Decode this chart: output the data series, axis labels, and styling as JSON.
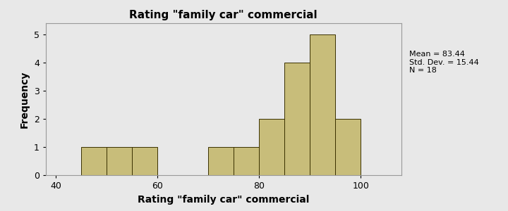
{
  "title": "Rating \"family car\" commercial",
  "xlabel": "Rating \"family car\" commercial",
  "ylabel": "Frequency",
  "bar_color": "#C8BD7A",
  "bar_edge_color": "#3A3000",
  "plot_bg_color": "#E8E8E8",
  "fig_bg_color": "#E8E8E8",
  "annotation": "Mean = 83.44\nStd. Dev. = 15.44\nN = 18",
  "xlim": [
    38,
    108
  ],
  "ylim": [
    0,
    5.4
  ],
  "yticks": [
    0,
    1,
    2,
    3,
    4,
    5
  ],
  "xticks": [
    40,
    60,
    80,
    100
  ],
  "bin_edges": [
    45,
    50,
    55,
    60,
    65,
    70,
    75,
    80,
    85,
    90,
    95,
    100,
    105
  ],
  "frequencies": [
    1,
    1,
    1,
    0,
    0,
    1,
    1,
    2,
    4,
    5,
    2,
    0
  ],
  "title_fontsize": 11,
  "label_fontsize": 10,
  "tick_fontsize": 9,
  "annot_fontsize": 8
}
